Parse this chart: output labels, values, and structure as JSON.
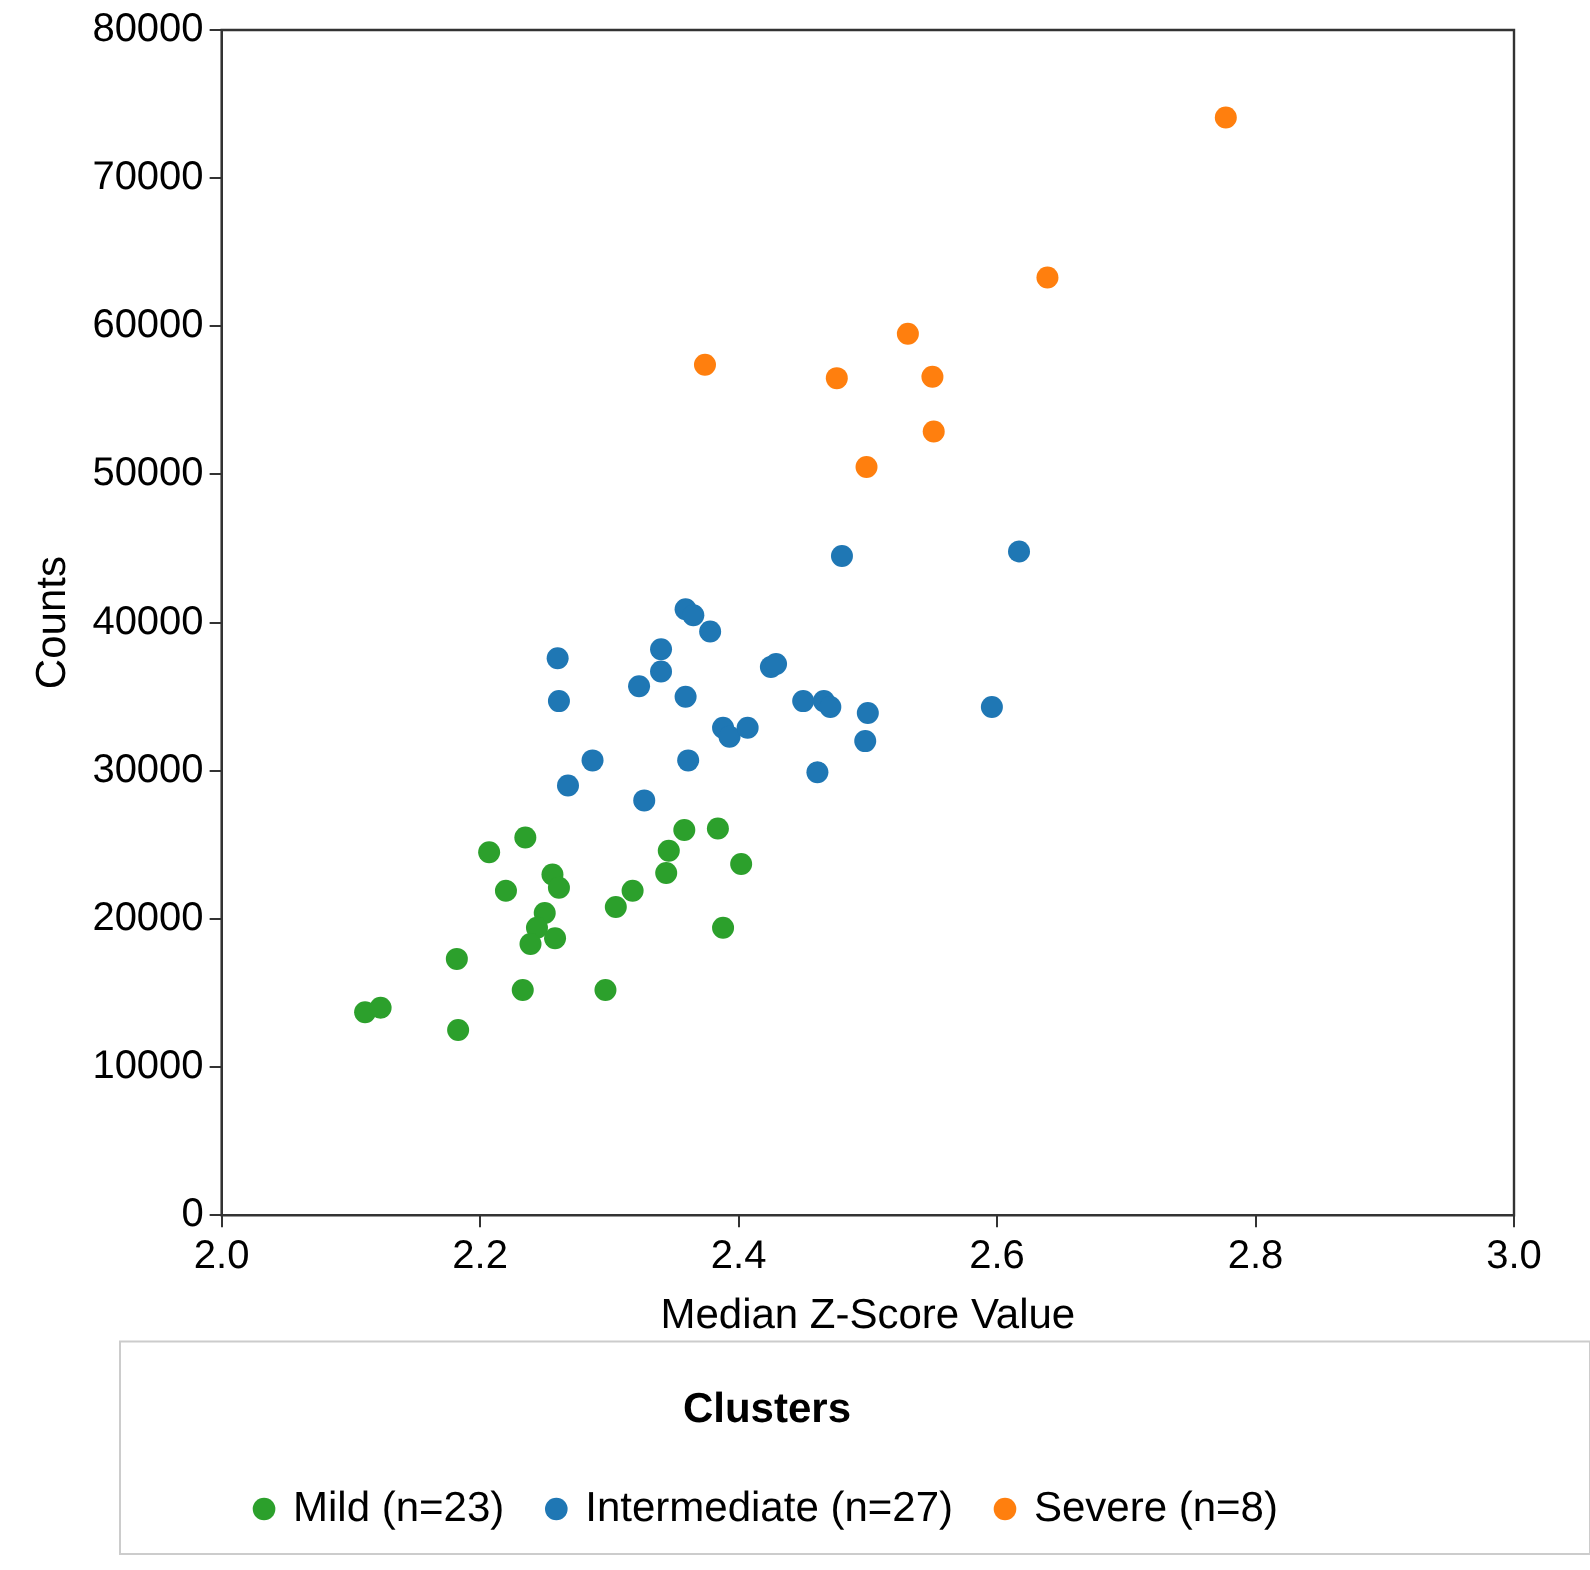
{
  "chart_data": {
    "type": "scatter",
    "xlabel": "Median Z-Score Value",
    "ylabel": "Counts",
    "legend_title": "Clusters",
    "legend": "bottom",
    "marker": "circle",
    "grid": false,
    "xlim": [
      2.0,
      3.0
    ],
    "xticks": [
      {
        "value": 2,
        "label": "2.0"
      },
      {
        "value": 2.2,
        "label": "2.2"
      },
      {
        "value": 2.4,
        "label": "2.4"
      },
      {
        "value": 2.6,
        "label": "2.6"
      },
      {
        "value": 2.8,
        "label": "2.8"
      },
      {
        "value": 3,
        "label": "3.0"
      }
    ],
    "ylim": [
      0,
      80000
    ],
    "yticks": [
      0,
      10000,
      20000,
      30000,
      40000,
      50000,
      60000,
      70000,
      80000
    ],
    "series": [
      {
        "name": "Mild (n=23)",
        "color": "#2ca02c",
        "x": [
          2.111,
          2.123,
          2.182,
          2.183,
          2.207,
          2.235,
          2.22,
          2.256,
          2.261,
          2.25,
          2.244,
          2.258,
          2.239,
          2.233,
          2.297,
          2.305,
          2.318,
          2.344,
          2.346,
          2.358,
          2.384,
          2.402,
          2.388
        ],
        "values": [
          13700,
          14000,
          17300,
          12500,
          24500,
          25500,
          21900,
          23000,
          22100,
          20400,
          19400,
          18700,
          18300,
          15200,
          15200,
          20800,
          21900,
          23100,
          24600,
          26000,
          26100,
          23700,
          19400
        ]
      },
      {
        "name": "Intermediate (n=27)",
        "color": "#1f77b4",
        "x": [
          2.26,
          2.261,
          2.268,
          2.287,
          2.323,
          2.34,
          2.34,
          2.327,
          2.359,
          2.365,
          2.378,
          2.359,
          2.361,
          2.388,
          2.393,
          2.407,
          2.425,
          2.429,
          2.45,
          2.466,
          2.471,
          2.5,
          2.498,
          2.461,
          2.596,
          2.48,
          2.617
        ],
        "values": [
          37600,
          34700,
          29000,
          30700,
          35700,
          38200,
          36700,
          28000,
          40900,
          40500,
          39400,
          35000,
          30700,
          32900,
          32300,
          32900,
          37000,
          37200,
          34700,
          34700,
          34300,
          33900,
          32000,
          29900,
          34300,
          44500,
          44800
        ]
      },
      {
        "name": "Severe (n=8)",
        "color": "#ff7f0e",
        "x": [
          2.777,
          2.639,
          2.531,
          2.374,
          2.476,
          2.55,
          2.551,
          2.499
        ],
        "values": [
          74100,
          63300,
          59500,
          57400,
          56500,
          56600,
          52900,
          50500
        ]
      }
    ]
  }
}
